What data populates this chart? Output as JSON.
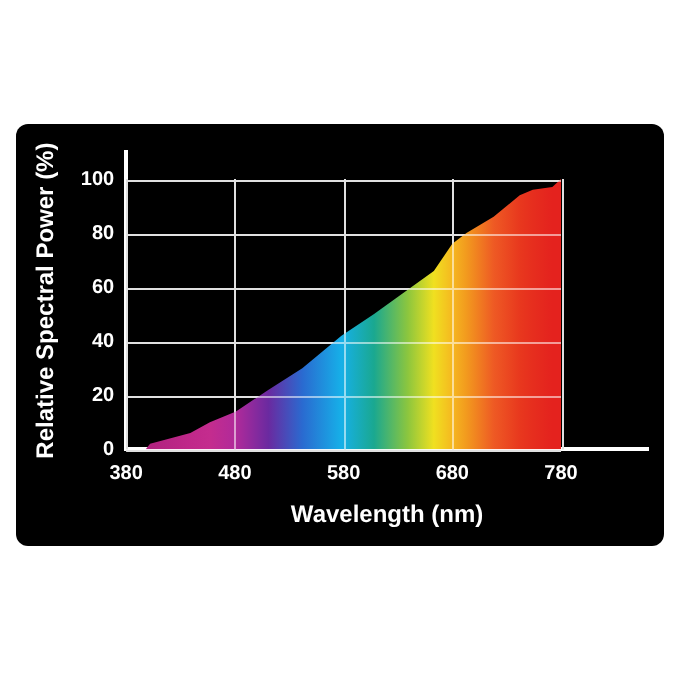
{
  "chart_data": {
    "type": "area",
    "xlabel": "Wavelength (nm)",
    "ylabel": "Relative Spectral Power (%)",
    "x": [
      398,
      402,
      439,
      457,
      481,
      511,
      542,
      578,
      608,
      639,
      663,
      680,
      693,
      718,
      742,
      754,
      772,
      780
    ],
    "values": [
      0,
      2,
      6,
      10,
      14,
      22,
      30,
      42,
      50,
      59,
      66,
      76,
      80,
      86,
      94,
      96,
      97,
      100
    ],
    "colors": [
      "#b0237f",
      "#b0237f",
      "#c0288a",
      "#c42c8e",
      "#b02a9a",
      "#6a2aa0",
      "#2a6ad0",
      "#16b0e8",
      "#1aa890",
      "#8cc63e",
      "#f0e020",
      "#f5b820",
      "#f29a1e",
      "#ee5a24",
      "#e8381e",
      "#e62e1e",
      "#e4221e",
      "#e4221e"
    ],
    "xlim": [
      380,
      860
    ],
    "ylim": [
      0,
      110
    ],
    "xticks": [
      380,
      480,
      580,
      680,
      780
    ],
    "yticks": [
      0,
      20,
      40,
      60,
      80,
      100
    ],
    "grid": true,
    "marker": "none"
  }
}
